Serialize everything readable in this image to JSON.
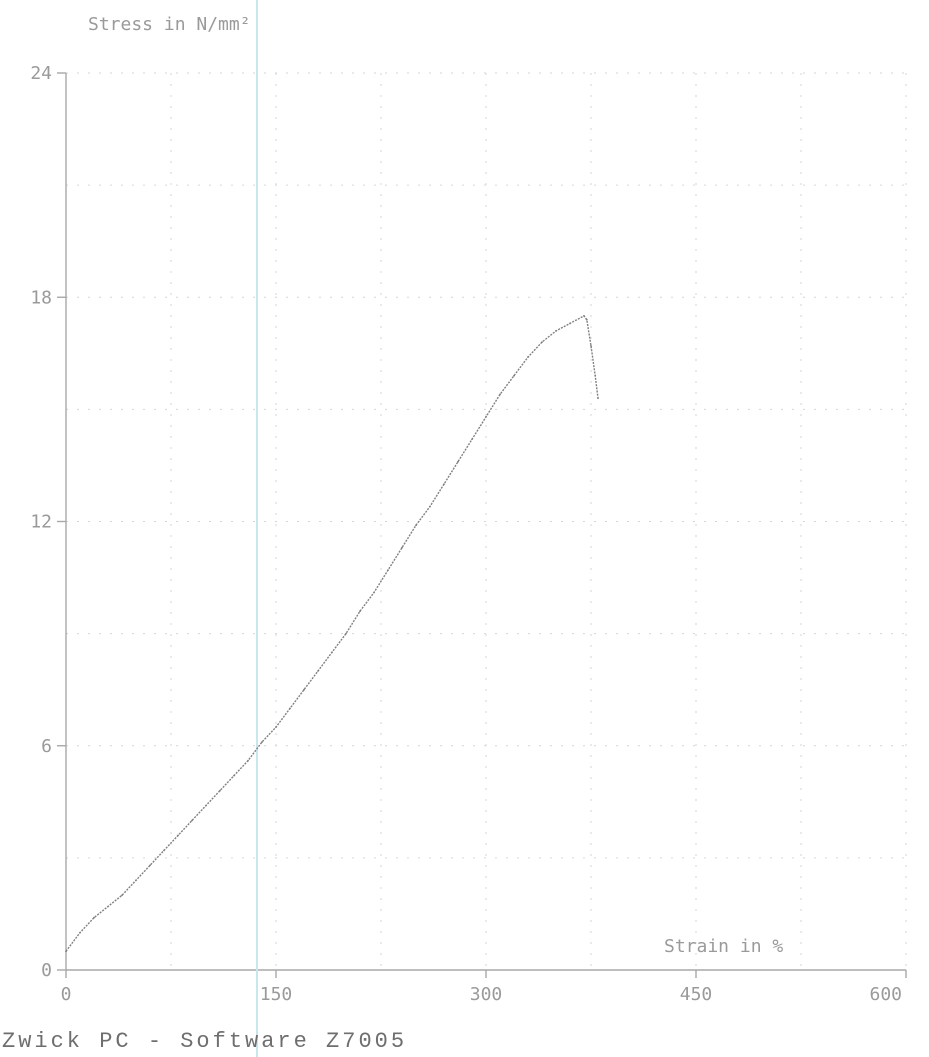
{
  "chart_data": {
    "type": "line",
    "ylabel": "Stress in N/mm²",
    "xlabel": "Strain in %",
    "xlim": [
      0,
      600
    ],
    "ylim": [
      0,
      24
    ],
    "x_ticks": [
      "0",
      "150",
      "300",
      "450",
      "600"
    ],
    "y_ticks": [
      "0",
      "6",
      "12",
      "18",
      "24"
    ],
    "grid": true,
    "series": [
      {
        "x": [
          0,
          10,
          20,
          30,
          40,
          50,
          60,
          70,
          80,
          90,
          100,
          110,
          120,
          130,
          140,
          150,
          160,
          170,
          180,
          190,
          200,
          210,
          220,
          230,
          240,
          250,
          260,
          270,
          280,
          290,
          300,
          310,
          320,
          330,
          340,
          350,
          360,
          370,
          372,
          375,
          378,
          380
        ],
        "y": [
          0.5,
          1.0,
          1.4,
          1.7,
          2.0,
          2.4,
          2.8,
          3.2,
          3.6,
          4.0,
          4.4,
          4.8,
          5.2,
          5.6,
          6.1,
          6.5,
          7.0,
          7.5,
          8.0,
          8.5,
          9.0,
          9.6,
          10.1,
          10.7,
          11.3,
          11.9,
          12.4,
          13.0,
          13.6,
          14.2,
          14.8,
          15.4,
          15.9,
          16.4,
          16.8,
          17.1,
          17.3,
          17.5,
          17.4,
          16.7,
          15.9,
          15.3
        ]
      }
    ]
  },
  "footer": "Zwick   PC - Software  Z7005"
}
